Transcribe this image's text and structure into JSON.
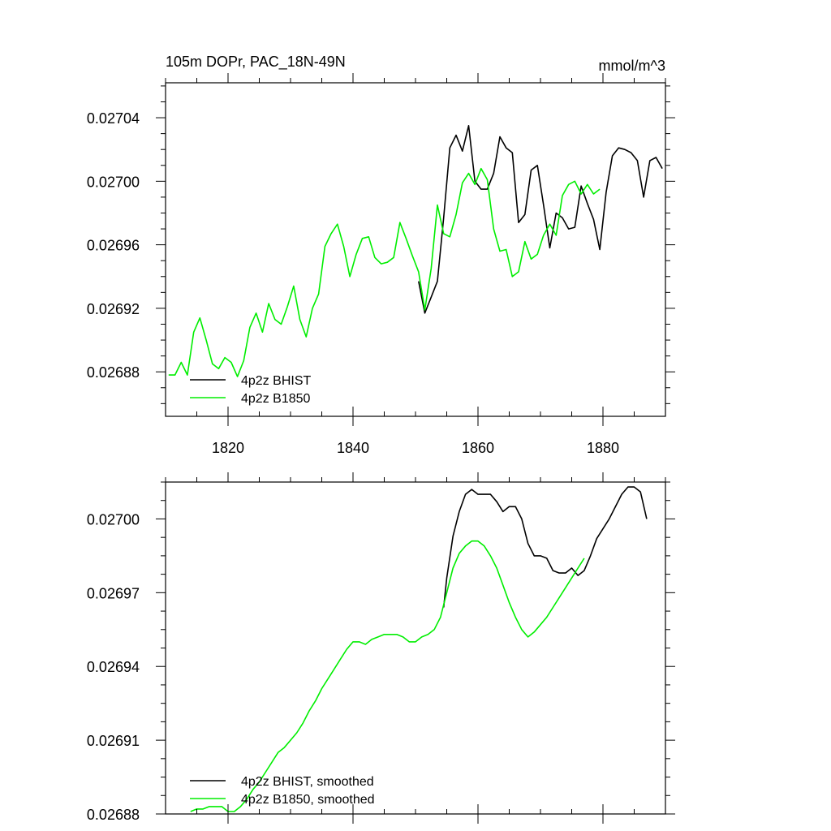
{
  "chart_data": [
    {
      "type": "line",
      "title": "105m DOPr, PAC_18N-49N",
      "units": "mmol/m^3",
      "xlim": [
        1810,
        1890
      ],
      "ylim": [
        0.026852,
        0.027062
      ],
      "x_ticks": [
        1820,
        1840,
        1860,
        1880
      ],
      "x_tick_labels": [
        "1820",
        "1840",
        "1860",
        "1880"
      ],
      "y_ticks": [
        0.02688,
        0.02692,
        0.02696,
        0.027,
        0.02704
      ],
      "y_tick_labels": [
        "0.02688",
        "0.02692",
        "0.02696",
        "0.02700",
        "0.02704"
      ],
      "legend_position": "bottom-left",
      "series": [
        {
          "name": "4p2z BHIST",
          "color": "#000000",
          "x": [
            1850.5,
            1851.5,
            1852.5,
            1853.5,
            1854.5,
            1855.5,
            1856.5,
            1857.5,
            1858.5,
            1859.5,
            1860.5,
            1861.5,
            1862.5,
            1863.5,
            1864.5,
            1865.5,
            1866.5,
            1867.5,
            1868.5,
            1869.5,
            1870.5,
            1871.5,
            1872.5,
            1873.5,
            1874.5,
            1875.5,
            1876.5,
            1877.5,
            1878.5,
            1879.5,
            1880.5,
            1881.5,
            1882.5,
            1883.5,
            1884.5,
            1885.5,
            1886.5,
            1887.5,
            1888.5,
            1889.5
          ],
          "values": [
            0.026937,
            0.026917,
            0.026927,
            0.026937,
            0.026977,
            0.027021,
            0.027029,
            0.027019,
            0.027035,
            0.027,
            0.026995,
            0.026995,
            0.027005,
            0.027028,
            0.027021,
            0.027018,
            0.026974,
            0.026979,
            0.027007,
            0.02701,
            0.026985,
            0.026958,
            0.02698,
            0.026977,
            0.02697,
            0.026971,
            0.026997,
            0.026986,
            0.026976,
            0.026957,
            0.026993,
            0.027016,
            0.027021,
            0.02702,
            0.027018,
            0.027013,
            0.02699,
            0.027013,
            0.027015,
            0.027008
          ]
        },
        {
          "name": "4p2z B1850",
          "color": "#00ee00",
          "x": [
            1810.5,
            1811.5,
            1812.5,
            1813.5,
            1814.5,
            1815.5,
            1816.5,
            1817.5,
            1818.5,
            1819.5,
            1820.5,
            1821.5,
            1822.5,
            1823.5,
            1824.5,
            1825.5,
            1826.5,
            1827.5,
            1828.5,
            1829.5,
            1830.5,
            1831.5,
            1832.5,
            1833.5,
            1834.5,
            1835.5,
            1836.5,
            1837.5,
            1838.5,
            1839.5,
            1840.5,
            1841.5,
            1842.5,
            1843.5,
            1844.5,
            1845.5,
            1846.5,
            1847.5,
            1848.5,
            1849.5,
            1850.5,
            1851.5,
            1852.5,
            1853.5,
            1854.5,
            1855.5,
            1856.5,
            1857.5,
            1858.5,
            1859.5,
            1860.5,
            1861.5,
            1862.5,
            1863.5,
            1864.5,
            1865.5,
            1866.5,
            1867.5,
            1868.5,
            1869.5,
            1870.5,
            1871.5,
            1872.5,
            1873.5,
            1874.5,
            1875.5,
            1876.5,
            1877.5,
            1878.5,
            1879.5
          ],
          "values": [
            0.026878,
            0.026878,
            0.026886,
            0.026878,
            0.026905,
            0.026914,
            0.0269,
            0.026885,
            0.026882,
            0.026889,
            0.026886,
            0.026877,
            0.026887,
            0.026908,
            0.026917,
            0.026905,
            0.026923,
            0.026913,
            0.02691,
            0.026921,
            0.026934,
            0.026913,
            0.026902,
            0.02692,
            0.026929,
            0.026959,
            0.026967,
            0.026973,
            0.026959,
            0.02694,
            0.026954,
            0.026964,
            0.026965,
            0.026952,
            0.026948,
            0.026949,
            0.026952,
            0.026974,
            0.026964,
            0.026953,
            0.026943,
            0.026919,
            0.026945,
            0.026985,
            0.026967,
            0.026965,
            0.026979,
            0.026999,
            0.027005,
            0.026998,
            0.027008,
            0.027001,
            0.02697,
            0.026956,
            0.026957,
            0.02694,
            0.026943,
            0.026962,
            0.026951,
            0.026954,
            0.026966,
            0.026973,
            0.026966,
            0.026991,
            0.026998,
            0.027,
            0.026992,
            0.026998,
            0.026992,
            0.026995
          ]
        }
      ]
    },
    {
      "type": "line",
      "title": "",
      "xlim": [
        1810,
        1890
      ],
      "ylim": [
        0.02688,
        0.027015
      ],
      "x_ticks": [
        1820,
        1840,
        1860,
        1880
      ],
      "y_ticks": [
        0.02688,
        0.02691,
        0.02694,
        0.02697,
        0.027
      ],
      "y_tick_labels": [
        "0.02688",
        "0.02691",
        "0.02694",
        "0.02697",
        "0.02700"
      ],
      "legend_position": "bottom-left",
      "series": [
        {
          "name": "4p2z BHIST, smoothed",
          "color": "#000000",
          "x": [
            1854.5,
            1855.0,
            1856.0,
            1857.0,
            1858.0,
            1859.0,
            1860.0,
            1861.0,
            1862.0,
            1863.0,
            1864.0,
            1865.0,
            1866.0,
            1867.0,
            1868.0,
            1869.0,
            1870.0,
            1871.0,
            1872.0,
            1873.0,
            1874.0,
            1875.0,
            1876.0,
            1877.0,
            1878.0,
            1879.0,
            1880.0,
            1881.0,
            1882.0,
            1883.0,
            1884.0,
            1885.0,
            1886.0,
            1887.0
          ],
          "values": [
            0.026964,
            0.026976,
            0.026993,
            0.027003,
            0.02701,
            0.027012,
            0.02701,
            0.02701,
            0.02701,
            0.027007,
            0.027003,
            0.027005,
            0.027005,
            0.027,
            0.02699,
            0.026985,
            0.026985,
            0.026984,
            0.026979,
            0.026978,
            0.026978,
            0.02698,
            0.026977,
            0.026979,
            0.026985,
            0.026992,
            0.026996,
            0.027,
            0.027005,
            0.02701,
            0.027013,
            0.027013,
            0.027011,
            0.027
          ]
        },
        {
          "name": "4p2z B1850, smoothed",
          "color": "#00ee00",
          "x": [
            1814.0,
            1815.0,
            1816.0,
            1817.0,
            1818.0,
            1819.0,
            1820.0,
            1821.0,
            1822.0,
            1823.0,
            1824.0,
            1825.0,
            1826.0,
            1827.0,
            1828.0,
            1829.0,
            1830.0,
            1831.0,
            1832.0,
            1833.0,
            1834.0,
            1835.0,
            1836.0,
            1837.0,
            1838.0,
            1839.0,
            1840.0,
            1841.0,
            1842.0,
            1843.0,
            1844.0,
            1845.0,
            1846.0,
            1847.0,
            1848.0,
            1849.0,
            1850.0,
            1851.0,
            1852.0,
            1853.0,
            1854.0,
            1855.0,
            1856.0,
            1857.0,
            1858.0,
            1859.0,
            1860.0,
            1861.0,
            1862.0,
            1863.0,
            1864.0,
            1865.0,
            1866.0,
            1867.0,
            1868.0,
            1869.0,
            1870.0,
            1871.0,
            1872.0,
            1873.0,
            1874.0,
            1875.0,
            1876.0,
            1877.0
          ],
          "values": [
            0.026881,
            0.026882,
            0.026882,
            0.026883,
            0.026883,
            0.026883,
            0.026881,
            0.026881,
            0.026883,
            0.026886,
            0.02689,
            0.026893,
            0.026897,
            0.026901,
            0.026905,
            0.026907,
            0.02691,
            0.026913,
            0.026917,
            0.026922,
            0.026926,
            0.026931,
            0.026935,
            0.026939,
            0.026943,
            0.026947,
            0.02695,
            0.02695,
            0.026949,
            0.026951,
            0.026952,
            0.026953,
            0.026953,
            0.026953,
            0.026952,
            0.02695,
            0.02695,
            0.026952,
            0.026953,
            0.026955,
            0.02696,
            0.02697,
            0.02698,
            0.026986,
            0.026989,
            0.026991,
            0.026991,
            0.026989,
            0.026985,
            0.02698,
            0.026973,
            0.026966,
            0.02696,
            0.026955,
            0.026952,
            0.026954,
            0.026957,
            0.02696,
            0.026964,
            0.026968,
            0.026972,
            0.026976,
            0.02698,
            0.026984
          ]
        }
      ]
    }
  ]
}
